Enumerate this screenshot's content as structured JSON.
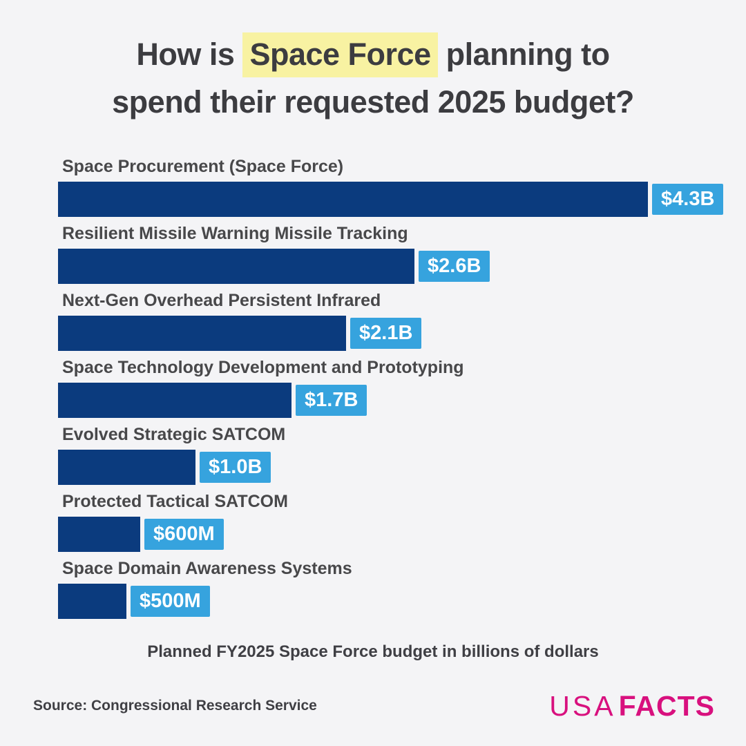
{
  "page": {
    "title": {
      "line1_pre": "How is",
      "line1_highlight": "Space Force",
      "line1_post": "planning to",
      "line2": "spend their requested 2025 budget?"
    },
    "caption": "Planned FY2025 Space Force budget in billions of dollars",
    "source": "Source: Congressional Research Service",
    "logo": {
      "usa": "USA",
      "facts": "FACTS"
    }
  },
  "colors": {
    "background": "#f4f4f6",
    "bar": "#0b3b7e",
    "value_badge": "#36a3de",
    "badge_text": "#ffffff",
    "title_text": "#3c3c40",
    "label_text": "#48484a",
    "title_highlight": "#f8f2a2",
    "logo_pink": "#d8107e"
  },
  "chart_data": {
    "type": "bar",
    "orientation": "horizontal",
    "title": "How is Space Force planning to spend their requested 2025 budget?",
    "categories": [
      "Space Procurement (Space Force)",
      "Resilient Missile Warning Missile Tracking",
      "Next-Gen Overhead Persistent Infrared",
      "Space Technology Development and Prototyping",
      "Evolved Strategic SATCOM",
      "Protected Tactical SATCOM",
      "Space Domain Awareness Systems"
    ],
    "values": [
      4.3,
      2.6,
      2.1,
      1.7,
      1.0,
      0.6,
      0.5
    ],
    "value_labels": [
      "$4.3B",
      "$2.6B",
      "$2.1B",
      "$1.7B",
      "$1.0B",
      "$600M",
      "$500M"
    ],
    "unit": "billions of USD",
    "xlim": [
      0,
      4.3
    ],
    "note": "Planned FY2025 Space Force budget in billions of dollars",
    "grid": false,
    "legend": false
  }
}
